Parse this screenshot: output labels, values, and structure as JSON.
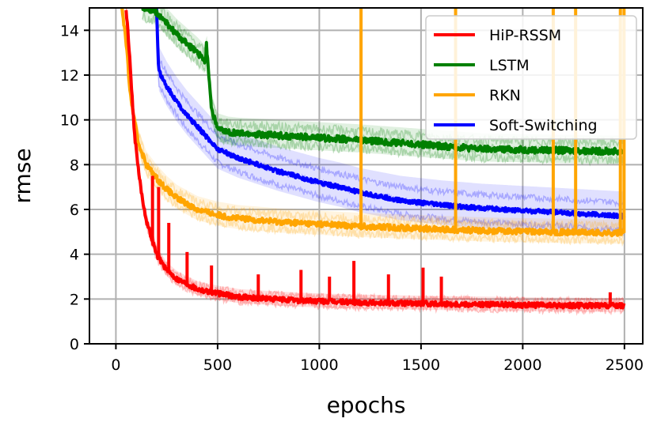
{
  "chart_data": {
    "type": "line",
    "title": "",
    "xlabel": "epochs",
    "ylabel": "rmse",
    "xlim": [
      -130,
      2590
    ],
    "ylim": [
      0,
      15
    ],
    "xticks": [
      0,
      500,
      1000,
      1500,
      2000,
      2500
    ],
    "xtick_labels": [
      "0",
      "500",
      "1000",
      "1500",
      "2000",
      "2500"
    ],
    "yticks": [
      0,
      2,
      4,
      6,
      8,
      10,
      12,
      14
    ],
    "ytick_labels": [
      "0",
      "2",
      "4",
      "6",
      "8",
      "10",
      "12",
      "14"
    ],
    "grid": true,
    "legend_position": "top-right",
    "series": [
      {
        "name": "HiP-RSSM",
        "color": "#ff0000",
        "x": [
          50,
          70,
          90,
          110,
          130,
          150,
          200,
          250,
          300,
          400,
          500,
          600,
          800,
          1000,
          1200,
          1500,
          1800,
          2100,
          2400,
          2500
        ],
        "values": [
          15,
          12.5,
          9.5,
          7.8,
          6.5,
          5.5,
          4.0,
          3.3,
          2.9,
          2.45,
          2.25,
          2.1,
          1.98,
          1.9,
          1.85,
          1.8,
          1.76,
          1.72,
          1.7,
          1.7
        ],
        "spikes": [
          [
            180,
            7.5
          ],
          [
            210,
            7.0
          ],
          [
            260,
            5.4
          ],
          [
            350,
            4.1
          ],
          [
            470,
            3.5
          ],
          [
            700,
            3.1
          ],
          [
            910,
            3.3
          ],
          [
            1050,
            3.0
          ],
          [
            1170,
            3.7
          ],
          [
            1340,
            3.1
          ],
          [
            1510,
            3.4
          ],
          [
            1600,
            3.0
          ],
          [
            2430,
            2.3
          ]
        ]
      },
      {
        "name": "LSTM",
        "color": "#008000",
        "x": [
          130,
          200,
          300,
          400,
          440,
          445,
          470,
          500,
          550,
          600,
          800,
          1000,
          1200,
          1500,
          1800,
          2100,
          2400,
          2500
        ],
        "values": [
          15,
          14.8,
          13.8,
          13.0,
          12.6,
          13.4,
          10.5,
          9.6,
          9.45,
          9.4,
          9.3,
          9.2,
          9.1,
          8.9,
          8.7,
          8.65,
          8.6,
          8.6
        ]
      },
      {
        "name": "RKN",
        "color": "#ffa500",
        "x": [
          30,
          50,
          70,
          90,
          110,
          150,
          200,
          250,
          300,
          400,
          500,
          600,
          800,
          1000,
          1200,
          1500,
          1800,
          2100,
          2400,
          2500
        ],
        "values": [
          15,
          13.5,
          11.2,
          10.0,
          9.0,
          8.0,
          7.4,
          6.9,
          6.5,
          6.0,
          5.75,
          5.6,
          5.45,
          5.35,
          5.25,
          5.15,
          5.05,
          5.0,
          4.95,
          4.95
        ],
        "spikes": [
          [
            1205,
            15
          ],
          [
            1670,
            15
          ],
          [
            2150,
            15
          ],
          [
            2260,
            15
          ],
          [
            2480,
            15
          ],
          [
            2498,
            15
          ]
        ]
      },
      {
        "name": "Soft-Switching",
        "color": "#0000ff",
        "x": [
          200,
          210,
          250,
          300,
          350,
          400,
          450,
          500,
          600,
          700,
          800,
          900,
          1000,
          1100,
          1200,
          1400,
          1600,
          1800,
          2000,
          2200,
          2400,
          2500
        ],
        "values": [
          15,
          12.2,
          11.5,
          10.8,
          10.2,
          9.7,
          9.2,
          8.7,
          8.3,
          8.0,
          7.7,
          7.45,
          7.2,
          7.0,
          6.75,
          6.4,
          6.2,
          6.05,
          5.95,
          5.85,
          5.75,
          5.7
        ]
      }
    ]
  }
}
